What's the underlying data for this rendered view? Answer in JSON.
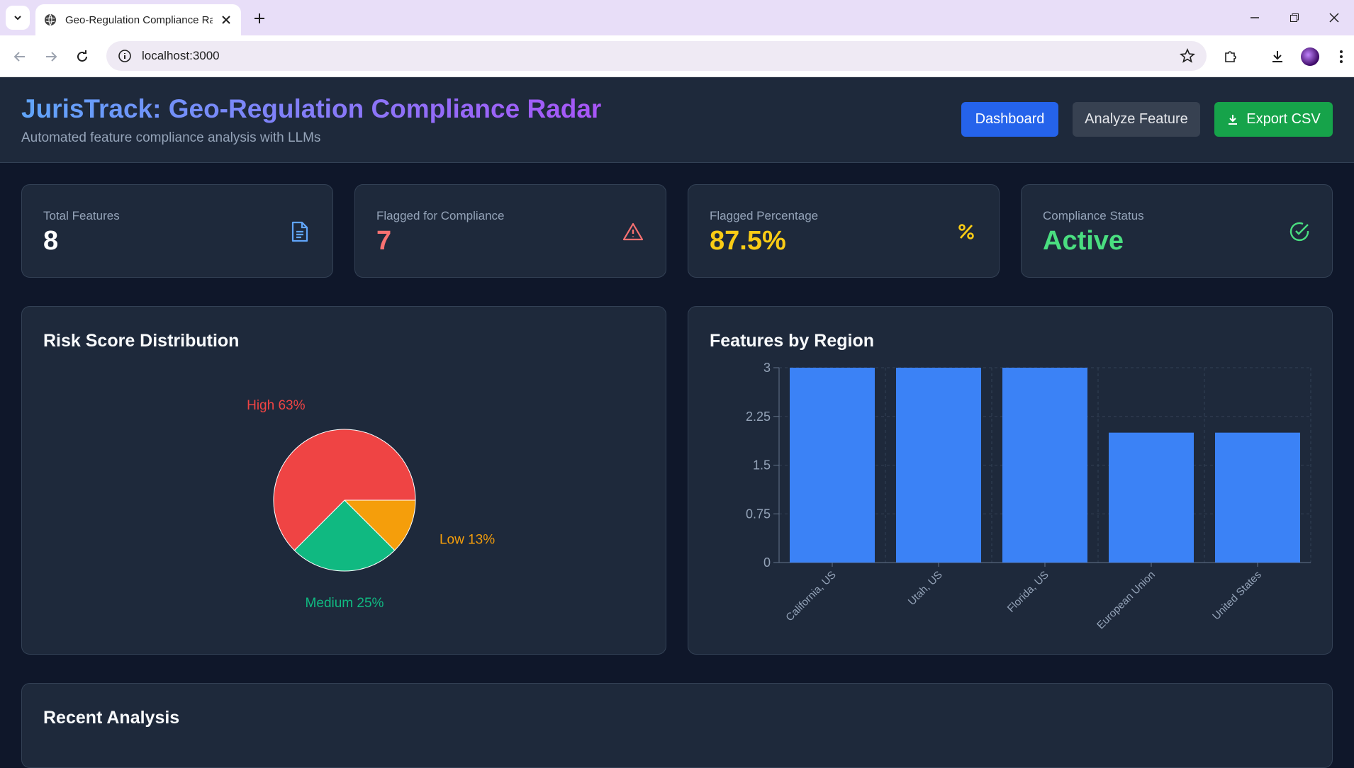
{
  "browser": {
    "tab_title": "Geo-Regulation Compliance Ra",
    "url": "localhost:3000"
  },
  "header": {
    "title": "JurisTrack: Geo-Regulation Compliance Radar",
    "subtitle": "Automated feature compliance analysis with LLMs",
    "buttons": {
      "dashboard": "Dashboard",
      "analyze": "Analyze Feature",
      "export": "Export CSV"
    }
  },
  "stats": [
    {
      "label": "Total Features",
      "value": "8",
      "color": "#ffffff",
      "icon": "document-icon",
      "icon_color": "#60a5fa"
    },
    {
      "label": "Flagged for Compliance",
      "value": "7",
      "color": "#f87171",
      "icon": "warning-icon",
      "icon_color": "#f87171"
    },
    {
      "label": "Flagged Percentage",
      "value": "87.5%",
      "color": "#facc15",
      "icon": "percent-icon",
      "icon_color": "#facc15"
    },
    {
      "label": "Compliance Status",
      "value": "Active",
      "color": "#4ade80",
      "icon": "check-circle-icon",
      "icon_color": "#4ade80"
    }
  ],
  "risk_panel": {
    "title": "Risk Score Distribution"
  },
  "region_panel": {
    "title": "Features by Region"
  },
  "recent": {
    "title": "Recent Analysis"
  },
  "chart_data": [
    {
      "type": "pie",
      "title": "Risk Score Distribution",
      "slices": [
        {
          "label": "High",
          "value": 5,
          "percent_label": "High 63%",
          "color": "#ef4444"
        },
        {
          "label": "Medium",
          "value": 2,
          "percent_label": "Medium 25%",
          "color": "#10b981"
        },
        {
          "label": "Low",
          "value": 1,
          "percent_label": "Low 13%",
          "color": "#f59e0b"
        }
      ]
    },
    {
      "type": "bar",
      "title": "Features by Region",
      "categories": [
        "California, US",
        "Utah, US",
        "Florida, US",
        "European Union",
        "United States"
      ],
      "values": [
        3,
        3,
        3,
        2,
        2
      ],
      "ylim": [
        0,
        3
      ],
      "yticks": [
        "0",
        "0.75",
        "1.5",
        "2.25",
        "3"
      ],
      "ytick_values": [
        0,
        0.75,
        1.5,
        2.25,
        3
      ],
      "color": "#3b82f6",
      "grid": true
    }
  ]
}
